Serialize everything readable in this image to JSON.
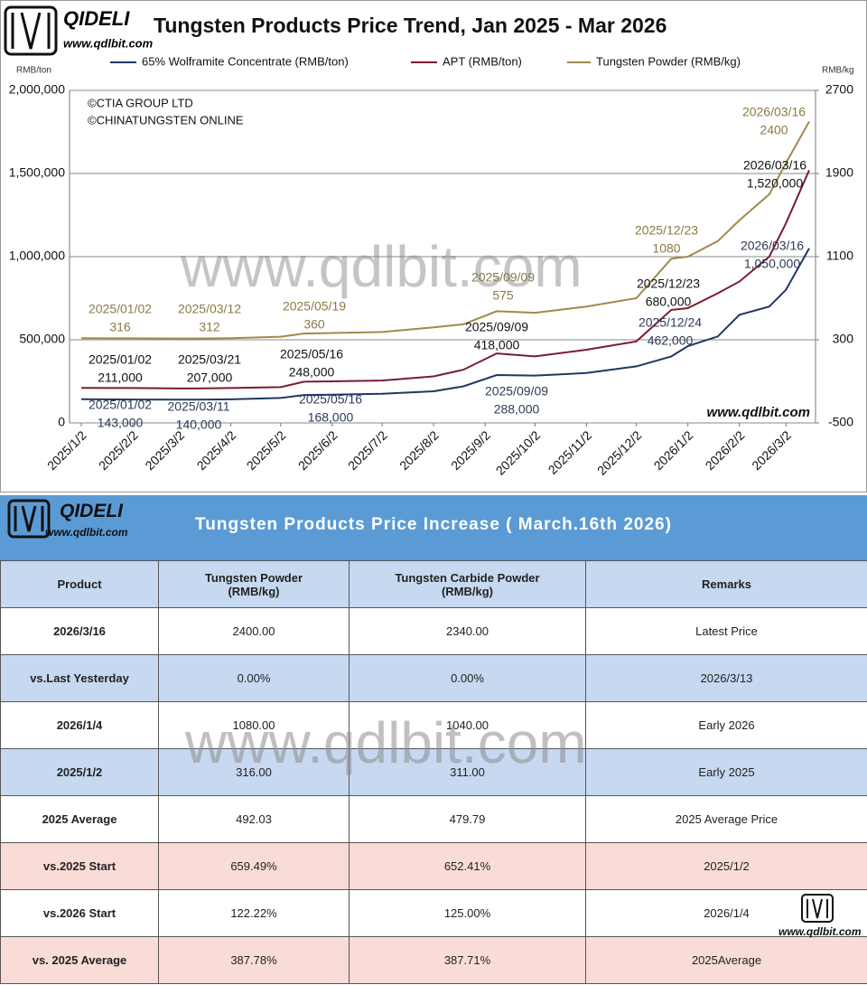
{
  "branding": {
    "name": "QIDELI",
    "url": "www.qdlbit.com"
  },
  "chart_data": {
    "type": "line",
    "title": "Tungsten Products Price Trend, Jan 2025 - Mar 2026",
    "y_label": "RMB/ton",
    "y2_label": "RMB/kg",
    "credits": [
      "©CTIA GROUP LTD",
      "©CHINATUNGSTEN ONLINE"
    ],
    "x": [
      "2025/1/2",
      "2025/2/2",
      "2025/3/2",
      "2025/3/12",
      "2025/4/2",
      "2025/5/2",
      "2025/5/16",
      "2025/6/2",
      "2025/7/2",
      "2025/8/2",
      "2025/8/20",
      "2025/9/9",
      "2025/10/2",
      "2025/11/2",
      "2025/12/2",
      "2025/12/23",
      "2026/1/2",
      "2026/1/20",
      "2026/2/2",
      "2026/2/20",
      "2026/3/2",
      "2026/3/16"
    ],
    "xlim": [
      "2025/1/2",
      "2026/3/16"
    ],
    "xticks": [
      "2025/1/2",
      "2025/2/2",
      "2025/3/2",
      "2025/4/2",
      "2025/5/2",
      "2025/6/2",
      "2025/7/2",
      "2025/8/2",
      "2025/9/2",
      "2025/10/2",
      "2025/11/2",
      "2025/12/2",
      "2026/1/2",
      "2026/2/2",
      "2026/3/2"
    ],
    "ylim": [
      0,
      2000000
    ],
    "yticks": [
      0,
      {
        "value": 500000,
        "label": "500,000"
      },
      {
        "value": 1000000,
        "label": "1,000,000"
      },
      {
        "value": 1500000,
        "label": "1,500,000"
      },
      {
        "value": 2000000,
        "label": "2,000,000"
      }
    ],
    "y2lim": [
      -500,
      2700
    ],
    "y2ticks": [
      -500,
      300,
      1100,
      1900,
      2700
    ],
    "grid": true,
    "series": [
      {
        "name": "65% Wolframite Concentrate (RMB/ton)",
        "color": "#1f3864",
        "values": [
          143000,
          141000,
          140000,
          140000,
          142000,
          150000,
          168000,
          170000,
          175000,
          190000,
          220000,
          288000,
          285000,
          300000,
          340000,
          400000,
          462000,
          520000,
          650000,
          700000,
          800000,
          1050000
        ],
        "annotations": [
          {
            "date": "2025/01/02",
            "value": "143,000"
          },
          {
            "date": "2025/03/11",
            "value": "140,000"
          },
          {
            "date": "2025/05/16",
            "value": "168,000"
          },
          {
            "date": "2025/09/09",
            "value": "288,000"
          },
          {
            "date": "2025/12/24",
            "value": "462,000"
          },
          {
            "date": "2026/03/16",
            "value": "1,050,000"
          }
        ]
      },
      {
        "name": "APT (RMB/ton)",
        "color": "#7b1c2e",
        "values": [
          211000,
          210000,
          207000,
          207000,
          210000,
          215000,
          248000,
          250000,
          255000,
          280000,
          320000,
          418000,
          400000,
          440000,
          490000,
          680000,
          690000,
          780000,
          850000,
          1000000,
          1200000,
          1520000
        ],
        "annotations": [
          {
            "date": "2025/01/02",
            "value": "211,000"
          },
          {
            "date": "2025/03/21",
            "value": "207,000"
          },
          {
            "date": "2025/05/16",
            "value": "248,000"
          },
          {
            "date": "2025/09/09",
            "value": "418,000"
          },
          {
            "date": "2025/12/23",
            "value": "680,000"
          },
          {
            "date": "2026/03/16",
            "value": "1,520,000"
          }
        ]
      },
      {
        "name": "Tungsten Powder (RMB/kg)",
        "color": "#a08a4a",
        "axis": "y2",
        "values": [
          316,
          314,
          312,
          312,
          316,
          330,
          360,
          365,
          375,
          420,
          450,
          575,
          560,
          620,
          700,
          1080,
          1100,
          1250,
          1450,
          1700,
          2000,
          2400
        ],
        "annotations": [
          {
            "date": "2025/01/02",
            "value": "316"
          },
          {
            "date": "2025/03/12",
            "value": "312"
          },
          {
            "date": "2025/05/19",
            "value": "360"
          },
          {
            "date": "2025/09/09",
            "value": "575"
          },
          {
            "date": "2025/12/23",
            "value": "1080"
          },
          {
            "date": "2026/03/16",
            "value": "2400"
          }
        ]
      }
    ]
  },
  "table": {
    "title": "Tungsten Products Price Increase ( March.16th 2026)",
    "columns": [
      "Product",
      "Tungsten Powder\n(RMB/kg)",
      "Tungsten Carbide Powder\n(RMB/kg)",
      "Remarks"
    ],
    "rows": [
      [
        "2026/3/16",
        "2400.00",
        "2340.00",
        "Latest Price"
      ],
      [
        "vs.Last Yesterday",
        "0.00%",
        "0.00%",
        "2026/3/13"
      ],
      [
        "2026/1/4",
        "1080.00",
        "1040.00",
        "Early 2026"
      ],
      [
        "2025/1/2",
        "316.00",
        "311.00",
        "Early 2025"
      ],
      [
        "2025 Average",
        "492.03",
        "479.79",
        "2025 Average Price"
      ],
      [
        "vs.2025 Start",
        "659.49%",
        "652.41%",
        "2025/1/2"
      ],
      [
        "vs.2026 Start",
        "122.22%",
        "125.00%",
        "2026/1/4"
      ],
      [
        "vs. 2025 Average",
        "387.78%",
        "387.71%",
        "2025Average"
      ]
    ]
  }
}
